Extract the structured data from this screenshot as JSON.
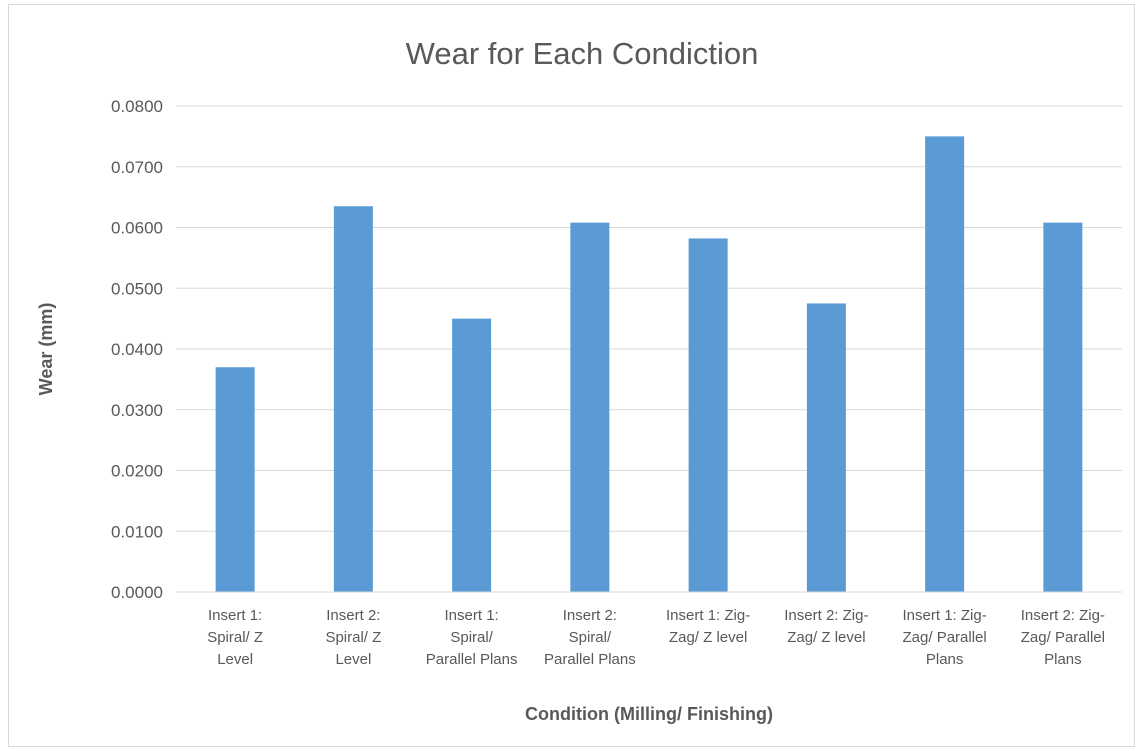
{
  "chart_data": {
    "type": "bar",
    "title": "Wear for Each Condiction",
    "xlabel": "Condition (Milling/ Finishing)",
    "ylabel": "Wear (mm)",
    "ylim": [
      0,
      0.08
    ],
    "y_ticks": [
      "0.0000",
      "0.0100",
      "0.0200",
      "0.0300",
      "0.0400",
      "0.0500",
      "0.0600",
      "0.0700",
      "0.0800"
    ],
    "grid": true,
    "categories": [
      [
        "Insert 1:",
        "Spiral/ Z",
        "Level"
      ],
      [
        "Insert 2:",
        "Spiral/ Z",
        "Level"
      ],
      [
        "Insert 1:",
        "Spiral/",
        "Parallel Plans"
      ],
      [
        "Insert 2:",
        "Spiral/",
        "Parallel Plans"
      ],
      [
        "Insert 1: Zig-",
        "Zag/ Z level"
      ],
      [
        "Insert 2: Zig-",
        "Zag/ Z level"
      ],
      [
        "Insert 1: Zig-",
        "Zag/ Parallel",
        "Plans"
      ],
      [
        "Insert 2: Zig-",
        "Zag/ Parallel",
        "Plans"
      ]
    ],
    "values": [
      0.037,
      0.0635,
      0.045,
      0.0608,
      0.0582,
      0.0475,
      0.075,
      0.0608
    ],
    "bar_color": "#5B9BD5"
  }
}
